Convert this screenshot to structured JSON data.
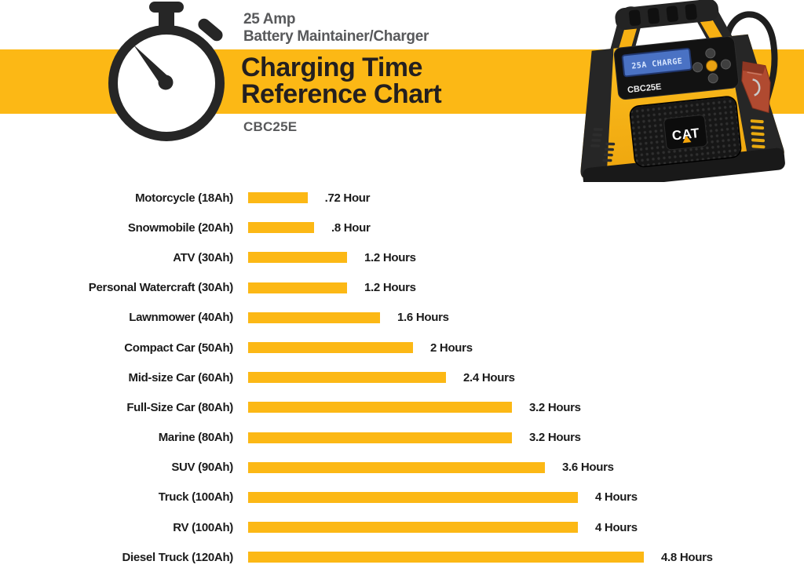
{
  "header": {
    "product_line1": "25 Amp",
    "product_line2": "Battery Maintainer/Charger",
    "title_line1": "Charging Time",
    "title_line2": "Reference Chart",
    "model": "CBC25E"
  },
  "product": {
    "brand": "CAT",
    "model_label": "CBC25E",
    "lcd_text": "25A CHARGE"
  },
  "icons": {
    "stopwatch": "stopwatch-icon",
    "product": "battery-charger-product-photo"
  },
  "colors": {
    "accent_yellow": "#FCB815",
    "text_dark": "#231F20",
    "text_gray": "#58595B",
    "lcd_blue": "#4A72C4",
    "clamp_red": "#B04A30"
  },
  "chart_data": {
    "type": "bar",
    "orientation": "horizontal",
    "title": "Charging Time Reference Chart",
    "unit": "Hours",
    "xlim": [
      0,
      4.8
    ],
    "grid": false,
    "legend": "none",
    "categories": [
      "Motorcycle (18Ah)",
      "Snowmobile (20Ah)",
      "ATV (30Ah)",
      "Personal Watercraft (30Ah)",
      "Lawnmower (40Ah)",
      "Compact Car (50Ah)",
      "Mid-size Car (60Ah)",
      "Full-Size Car (80Ah)",
      "Marine (80Ah)",
      "SUV (90Ah)",
      "Truck (100Ah)",
      "RV (100Ah)",
      "Diesel Truck (120Ah)"
    ],
    "values": [
      0.72,
      0.8,
      1.2,
      1.2,
      1.6,
      2,
      2.4,
      3.2,
      3.2,
      3.6,
      4,
      4,
      4.8
    ],
    "value_labels": [
      ".72 Hour",
      ".8 Hour",
      "1.2 Hours",
      "1.2 Hours",
      "1.6 Hours",
      "2 Hours",
      "2.4 Hours",
      "3.2 Hours",
      "3.2 Hours",
      "3.6 Hours",
      "4 Hours",
      "4 Hours",
      "4.8 Hours"
    ]
  }
}
